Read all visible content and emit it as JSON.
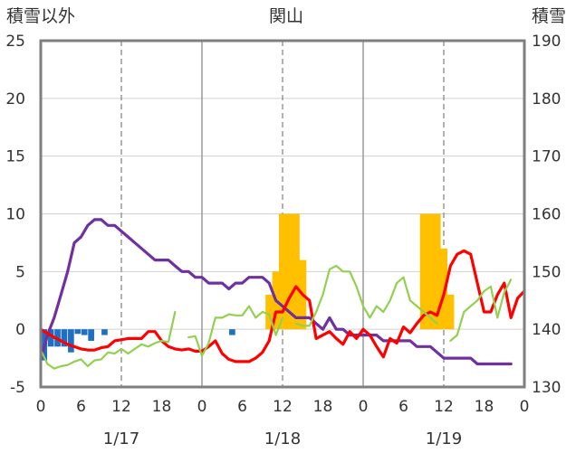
{
  "chart_data": {
    "type": "line",
    "title": "関山",
    "left_axis_label": "積雪以外",
    "right_axis_label": "積雪",
    "left_axis": {
      "min": -5,
      "max": 25,
      "step": 5,
      "ticks": [
        "-5",
        "0",
        "5",
        "10",
        "15",
        "20",
        "25"
      ]
    },
    "right_axis": {
      "min": 130,
      "max": 190,
      "step": 10,
      "ticks": [
        "130",
        "140",
        "150",
        "160",
        "170",
        "180",
        "190"
      ]
    },
    "x_axis": {
      "min": 0,
      "max": 72,
      "tick_hours": [
        0,
        6,
        12,
        18,
        24,
        30,
        36,
        42,
        48,
        54,
        60,
        66,
        72
      ],
      "tick_labels": [
        "0",
        "6",
        "12",
        "18",
        "0",
        "6",
        "12",
        "18",
        "0",
        "6",
        "12",
        "18",
        "0"
      ]
    },
    "dates": [
      {
        "label": "1/17",
        "hour": 12
      },
      {
        "label": "1/18",
        "hour": 36
      },
      {
        "label": "1/19",
        "hour": 60
      }
    ],
    "day_dividers": [
      24,
      48
    ],
    "grid": true,
    "series": [
      {
        "id": "snowfall",
        "kind": "bar",
        "axis": "left",
        "color": "#FFC000",
        "points": [
          [
            34,
            3
          ],
          [
            35,
            5
          ],
          [
            36,
            10
          ],
          [
            37,
            10
          ],
          [
            38,
            10
          ],
          [
            39,
            6
          ],
          [
            57,
            10
          ],
          [
            58,
            10
          ],
          [
            59,
            10
          ],
          [
            60,
            7
          ],
          [
            61,
            3
          ]
        ]
      },
      {
        "id": "precip",
        "kind": "bar",
        "axis": "left",
        "color": "#1F6FC4",
        "points": [
          [
            0.5,
            -2.7
          ],
          [
            1.5,
            -1.5
          ],
          [
            2.5,
            -1.5
          ],
          [
            3.5,
            -1.5
          ],
          [
            4.5,
            -2.0
          ],
          [
            5.5,
            -0.4
          ],
          [
            6.5,
            -0.5
          ],
          [
            7.5,
            -1.0
          ],
          [
            9.5,
            -0.5
          ],
          [
            28.5,
            -0.5
          ]
        ]
      },
      {
        "id": "snow_depth",
        "kind": "line",
        "axis": "right",
        "color": "#7030A0",
        "points": [
          [
            0,
            134.8
          ],
          [
            1,
            139
          ],
          [
            2,
            142
          ],
          [
            3,
            146
          ],
          [
            4,
            150
          ],
          [
            5,
            155
          ],
          [
            6,
            156
          ],
          [
            7,
            158
          ],
          [
            8,
            159
          ],
          [
            9,
            159
          ],
          [
            10,
            158
          ],
          [
            11,
            158
          ],
          [
            12,
            157
          ],
          [
            13,
            156
          ],
          [
            14,
            155
          ],
          [
            15,
            154
          ],
          [
            16,
            153
          ],
          [
            17,
            152
          ],
          [
            18,
            152
          ],
          [
            19,
            152
          ],
          [
            20,
            151
          ],
          [
            21,
            150
          ],
          [
            22,
            150
          ],
          [
            23,
            149
          ],
          [
            24,
            149
          ],
          [
            25,
            148
          ],
          [
            26,
            148
          ],
          [
            27,
            148
          ],
          [
            28,
            147
          ],
          [
            29,
            148
          ],
          [
            30,
            148
          ],
          [
            31,
            149
          ],
          [
            32,
            149
          ],
          [
            33,
            149
          ],
          [
            34,
            148
          ],
          [
            35,
            145
          ],
          [
            36,
            144
          ],
          [
            37,
            143
          ],
          [
            38,
            142
          ],
          [
            39,
            142
          ],
          [
            40,
            142
          ],
          [
            41,
            141
          ],
          [
            42,
            140
          ],
          [
            43,
            142
          ],
          [
            44,
            140
          ],
          [
            45,
            140
          ],
          [
            46,
            139
          ],
          [
            47,
            139
          ],
          [
            48,
            139
          ],
          [
            49,
            139
          ],
          [
            50,
            139
          ],
          [
            51,
            138
          ],
          [
            52,
            138
          ],
          [
            53,
            138
          ],
          [
            54,
            138
          ],
          [
            55,
            138
          ],
          [
            56,
            137
          ],
          [
            57,
            137
          ],
          [
            58,
            137
          ],
          [
            59,
            136
          ],
          [
            60,
            135
          ],
          [
            61,
            135
          ],
          [
            62,
            135
          ],
          [
            63,
            135
          ],
          [
            64,
            135
          ],
          [
            65,
            134
          ],
          [
            66,
            134
          ],
          [
            67,
            134
          ],
          [
            68,
            134
          ],
          [
            69,
            134
          ],
          [
            70,
            134
          ]
        ]
      },
      {
        "id": "temperature",
        "kind": "line",
        "axis": "left",
        "color": "#FF0000",
        "points": [
          [
            0,
            0
          ],
          [
            2,
            -0.7
          ],
          [
            4,
            -1.3
          ],
          [
            6,
            -1.7
          ],
          [
            7,
            -1.8
          ],
          [
            8,
            -1.8
          ],
          [
            9,
            -1.6
          ],
          [
            10,
            -1.5
          ],
          [
            11,
            -1.0
          ],
          [
            12,
            -0.9
          ],
          [
            13,
            -0.8
          ],
          [
            14,
            -0.8
          ],
          [
            15,
            -0.8
          ],
          [
            16,
            -0.2
          ],
          [
            17,
            -0.2
          ],
          [
            18,
            -1.0
          ],
          [
            19,
            -1.5
          ],
          [
            20,
            -1.7
          ],
          [
            21,
            -1.8
          ],
          [
            22,
            -1.7
          ],
          [
            23,
            -1.9
          ],
          [
            24,
            -1.9
          ],
          [
            25,
            -1.5
          ],
          [
            26,
            -1.0
          ],
          [
            27,
            -2.1
          ],
          [
            28,
            -2.6
          ],
          [
            29,
            -2.8
          ],
          [
            30,
            -2.8
          ],
          [
            31,
            -2.8
          ],
          [
            32,
            -2.5
          ],
          [
            33,
            -2.0
          ],
          [
            34,
            -1.0
          ],
          [
            35,
            1.5
          ],
          [
            36,
            1.5
          ],
          [
            37,
            2.7
          ],
          [
            38,
            3.7
          ],
          [
            39,
            3.0
          ],
          [
            40,
            2.5
          ],
          [
            41,
            -0.8
          ],
          [
            42,
            -0.5
          ],
          [
            43,
            -0.2
          ],
          [
            44,
            -0.8
          ],
          [
            45,
            -1.3
          ],
          [
            46,
            -0.2
          ],
          [
            47,
            -0.8
          ],
          [
            48,
            0
          ],
          [
            49,
            -0.5
          ],
          [
            50,
            -1.5
          ],
          [
            51,
            -2.4
          ],
          [
            52,
            -0.8
          ],
          [
            53,
            -1.2
          ],
          [
            54,
            0.2
          ],
          [
            55,
            -0.3
          ],
          [
            56,
            0.5
          ],
          [
            57,
            1.2
          ],
          [
            58,
            1.5
          ],
          [
            59,
            1.2
          ],
          [
            60,
            3.0
          ],
          [
            61,
            5.5
          ],
          [
            62,
            6.5
          ],
          [
            63,
            6.8
          ],
          [
            64,
            6.5
          ],
          [
            65,
            4.0
          ],
          [
            66,
            1.5
          ],
          [
            67,
            1.5
          ],
          [
            68,
            3.0
          ],
          [
            69,
            4.0
          ],
          [
            70,
            1.0
          ],
          [
            71,
            2.7
          ],
          [
            72,
            3.3
          ]
        ]
      },
      {
        "id": "wind",
        "kind": "line",
        "axis": "left",
        "color": "#92D050",
        "segments": [
          [
            [
              0,
              -1.8
            ],
            [
              1,
              -3.0
            ],
            [
              2,
              -3.4
            ],
            [
              3,
              -3.2
            ],
            [
              4,
              -3.1
            ],
            [
              5,
              -2.8
            ],
            [
              6,
              -2.6
            ],
            [
              7,
              -3.2
            ],
            [
              8,
              -2.7
            ],
            [
              9,
              -2.6
            ],
            [
              10,
              -2.0
            ],
            [
              11,
              -2.1
            ],
            [
              12,
              -1.7
            ],
            [
              13,
              -2.1
            ],
            [
              14,
              -1.7
            ],
            [
              15,
              -1.3
            ],
            [
              16,
              -1.5
            ],
            [
              17,
              -1.2
            ],
            [
              18,
              -1.0
            ],
            [
              19,
              -1.1
            ],
            [
              20,
              1.5
            ]
          ],
          [
            [
              22,
              -0.7
            ],
            [
              23,
              -0.6
            ],
            [
              24,
              -2.3
            ],
            [
              25,
              -1.2
            ],
            [
              26,
              1.0
            ],
            [
              27,
              1.0
            ],
            [
              28,
              1.3
            ],
            [
              29,
              1.2
            ],
            [
              30,
              1.2
            ],
            [
              31,
              2.0
            ],
            [
              32,
              1.0
            ],
            [
              33,
              1.5
            ],
            [
              34,
              1.3
            ],
            [
              35,
              -0.5
            ],
            [
              36,
              1.0
            ]
          ],
          [
            [
              38,
              0.5
            ],
            [
              39,
              0.3
            ],
            [
              40,
              0.3
            ],
            [
              41,
              1.5
            ],
            [
              42,
              3.0
            ],
            [
              43,
              5.2
            ],
            [
              44,
              5.5
            ],
            [
              45,
              5.0
            ],
            [
              46,
              5.0
            ],
            [
              47,
              3.7
            ],
            [
              48,
              2.0
            ],
            [
              49,
              1.0
            ],
            [
              50,
              2.0
            ],
            [
              51,
              1.5
            ],
            [
              52,
              2.5
            ],
            [
              53,
              4.0
            ],
            [
              54,
              4.5
            ],
            [
              55,
              2.5
            ],
            [
              56,
              2.0
            ],
            [
              57,
              1.5
            ],
            [
              58,
              1.0
            ],
            [
              59,
              0.5
            ]
          ],
          [
            [
              61,
              -1.0
            ],
            [
              62,
              -0.5
            ],
            [
              63,
              1.5
            ],
            [
              64,
              2.0
            ],
            [
              65,
              2.5
            ],
            [
              66,
              3.3
            ],
            [
              67,
              3.7
            ],
            [
              68,
              1.0
            ],
            [
              69,
              3.2
            ],
            [
              70,
              4.3
            ]
          ]
        ]
      }
    ]
  }
}
